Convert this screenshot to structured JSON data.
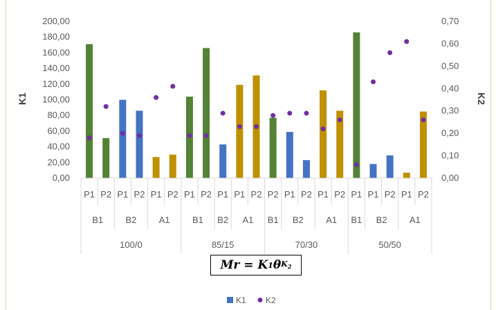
{
  "chart_data": {
    "type": "bar",
    "x_levels": {
      "groups": [
        "100/0",
        "85/15",
        "70/30",
        "50/50"
      ],
      "subgroups": [
        [
          "B1",
          "B2",
          "A1"
        ],
        [
          "B1",
          "B2",
          "A1"
        ],
        [
          "B1",
          "B2",
          "A1"
        ],
        [
          "B1",
          "B2",
          "A1"
        ]
      ],
      "categories": [
        [
          "P1",
          "P2"
        ],
        [
          "P1",
          "P2"
        ],
        [
          "P1",
          "P2"
        ],
        [
          "P1",
          "P2"
        ],
        [
          "P1"
        ],
        [
          "P1",
          "P2"
        ],
        [
          "P2"
        ],
        [
          "P1",
          "P2"
        ],
        [
          "P1",
          "P2"
        ],
        [
          "P1"
        ],
        [
          "P1",
          "P2"
        ],
        [
          "P1",
          "P2"
        ]
      ]
    },
    "categories": [
      "P1",
      "P2",
      "P1",
      "P2",
      "P1",
      "P2",
      "P1",
      "P2",
      "P1",
      "P1",
      "P2",
      "P2",
      "P1",
      "P2",
      "P1",
      "P2",
      "P1",
      "P1",
      "P2",
      "P1",
      "P2"
    ],
    "bar_subgroup_index": [
      0,
      0,
      1,
      1,
      2,
      2,
      0,
      0,
      1,
      2,
      2,
      0,
      1,
      1,
      2,
      2,
      0,
      1,
      1,
      2,
      2
    ],
    "subgroup_colors": {
      "B1": "#548235",
      "B2": "#4472c4",
      "A1": "#bf9000"
    },
    "series": [
      {
        "name": "K1",
        "axis": "left",
        "type": "bar",
        "color": "#4472c4",
        "values": [
          171,
          51,
          100,
          86,
          27,
          30,
          104,
          166,
          43,
          119,
          131,
          77,
          59,
          23,
          112,
          86,
          186,
          18,
          29,
          7,
          85
        ]
      },
      {
        "name": "K2",
        "axis": "right",
        "type": "scatter",
        "color": "#7030a0",
        "values": [
          0.18,
          0.32,
          0.2,
          0.19,
          0.36,
          0.41,
          0.19,
          0.19,
          0.29,
          0.23,
          0.23,
          0.28,
          0.29,
          0.29,
          0.22,
          0.26,
          0.06,
          0.43,
          0.56,
          0.61,
          0.26
        ]
      }
    ],
    "ylabel": "K1",
    "y2label": "K2",
    "ylim": [
      0,
      200
    ],
    "y2lim": [
      0,
      0.7
    ],
    "yticks": [
      "0,00",
      "20,00",
      "40,00",
      "60,00",
      "80,00",
      "100,00",
      "120,00",
      "140,00",
      "160,00",
      "180,00",
      "200,00"
    ],
    "y2ticks": [
      "0,00",
      "0,10",
      "0,20",
      "0,30",
      "0,40",
      "0,50",
      "0,60",
      "0,70"
    ],
    "grid": false,
    "legend_position": "bottom",
    "legend": [
      {
        "label": "K1",
        "color": "#4472c4",
        "marker": "square"
      },
      {
        "label": "K2",
        "color": "#7030a0",
        "marker": "circle"
      }
    ]
  },
  "annotation": {
    "formula_main": "Mr = K",
    "formula_sub": "1",
    "formula_theta": "θ",
    "formula_sup": "K",
    "formula_sup_sub": "2"
  }
}
